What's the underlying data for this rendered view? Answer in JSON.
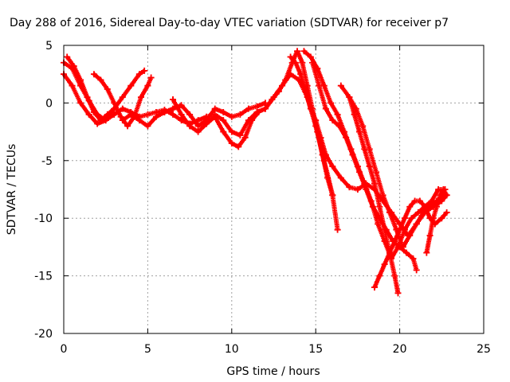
{
  "chart_data": {
    "type": "scatter",
    "title": "Day 288 of 2016, Sidereal Day-to-day VTEC variation (SDTVAR) for receiver p7",
    "xlabel": "GPS time / hours",
    "ylabel": "SDTVAR / TECUs",
    "xlim": [
      0,
      25
    ],
    "ylim": [
      -20,
      5
    ],
    "xticks": [
      "0",
      "5",
      "10",
      "15",
      "20",
      "25"
    ],
    "yticks": [
      "5",
      "0",
      "-5",
      "-10",
      "-15",
      "-20"
    ],
    "grid": true,
    "marker": "+",
    "series_color": "#ff0000",
    "series": [
      {
        "points": [
          [
            0,
            2.5
          ],
          [
            0.5,
            1.5
          ],
          [
            1,
            0
          ],
          [
            1.5,
            -1
          ],
          [
            2,
            -1.8
          ],
          [
            2.5,
            -1.5
          ],
          [
            3,
            -1
          ],
          [
            3.5,
            -0.5
          ],
          [
            4,
            -0.8
          ],
          [
            4.5,
            -1.2
          ],
          [
            5,
            -1
          ],
          [
            5.5,
            -0.8
          ],
          [
            6,
            -0.6
          ],
          [
            6.5,
            -1
          ],
          [
            7,
            -1.5
          ],
          [
            7.5,
            -1.8
          ],
          [
            8,
            -1.5
          ],
          [
            8.5,
            -1.2
          ],
          [
            9,
            -1
          ],
          [
            9.5,
            -1.5
          ],
          [
            10,
            -2.5
          ],
          [
            10.5,
            -2.8
          ],
          [
            11,
            -1.5
          ],
          [
            11.5,
            -0.8
          ],
          [
            12,
            -0.5
          ],
          [
            12.5,
            0.5
          ],
          [
            13,
            1.5
          ],
          [
            13.5,
            2.5
          ],
          [
            14,
            2
          ],
          [
            14.5,
            0.5
          ],
          [
            15,
            -2
          ],
          [
            15.5,
            -5
          ],
          [
            16,
            -8
          ],
          [
            16.3,
            -11
          ]
        ]
      },
      {
        "points": [
          [
            0,
            3.5
          ],
          [
            0.5,
            3
          ],
          [
            1,
            1.5
          ],
          [
            1.5,
            0.2
          ],
          [
            2,
            -1
          ],
          [
            2.5,
            -1.5
          ],
          [
            3,
            -0.5
          ],
          [
            3.5,
            0.5
          ],
          [
            4,
            1.5
          ],
          [
            4.5,
            2.5
          ],
          [
            4.8,
            2.8
          ]
        ]
      },
      {
        "points": [
          [
            1.8,
            2.5
          ],
          [
            2.2,
            2
          ],
          [
            2.6,
            1.2
          ],
          [
            3,
            0
          ],
          [
            3.4,
            -1.2
          ],
          [
            3.8,
            -2
          ],
          [
            4.2,
            -1.2
          ],
          [
            4.6,
            0.5
          ],
          [
            5,
            1.5
          ],
          [
            5.2,
            2.2
          ]
        ]
      },
      {
        "points": [
          [
            0.2,
            4
          ],
          [
            0.6,
            3.2
          ],
          [
            1,
            2
          ],
          [
            1.4,
            0.5
          ],
          [
            1.8,
            -0.8
          ],
          [
            2.2,
            -1.5
          ],
          [
            2.6,
            -1
          ],
          [
            3,
            -0.5
          ]
        ]
      },
      {
        "points": [
          [
            3.5,
            -1.5
          ],
          [
            4,
            -1
          ],
          [
            4.5,
            -1.5
          ],
          [
            5,
            -2
          ],
          [
            5.5,
            -1.2
          ],
          [
            6,
            -0.8
          ],
          [
            6.5,
            -0.5
          ],
          [
            7,
            -0.2
          ],
          [
            7.5,
            -1
          ],
          [
            8,
            -2
          ],
          [
            8.5,
            -1.5
          ],
          [
            9,
            -0.5
          ],
          [
            9.5,
            -0.8
          ],
          [
            10,
            -1.2
          ],
          [
            10.5,
            -1
          ],
          [
            11,
            -0.5
          ],
          [
            11.5,
            -0.3
          ],
          [
            12,
            0
          ]
        ]
      },
      {
        "points": [
          [
            6.5,
            0.3
          ],
          [
            7,
            -1
          ],
          [
            7.5,
            -2
          ],
          [
            8,
            -2.5
          ],
          [
            8.5,
            -1.8
          ],
          [
            9,
            -1.2
          ],
          [
            9.5,
            -2.5
          ],
          [
            10,
            -3.5
          ],
          [
            10.4,
            -3.8
          ],
          [
            10.8,
            -3
          ],
          [
            11.2,
            -1.5
          ],
          [
            11.6,
            -0.8
          ]
        ]
      },
      {
        "points": [
          [
            12,
            -0.5
          ],
          [
            12.4,
            0.3
          ],
          [
            12.8,
            1
          ],
          [
            13.2,
            2
          ],
          [
            13.6,
            3.5
          ],
          [
            13.9,
            4.5
          ],
          [
            14.2,
            3.5
          ],
          [
            14.5,
            1.5
          ],
          [
            14.8,
            -0.5
          ],
          [
            15.1,
            -2.5
          ],
          [
            15.4,
            -4.5
          ],
          [
            15.7,
            -6.5
          ],
          [
            16,
            -8
          ]
        ]
      },
      {
        "points": [
          [
            13.5,
            4
          ],
          [
            13.8,
            3.5
          ],
          [
            14.1,
            2.5
          ],
          [
            14.4,
            1
          ],
          [
            14.7,
            -0.5
          ],
          [
            15,
            -1.5
          ],
          [
            15.3,
            -3
          ],
          [
            15.6,
            -4.5
          ],
          [
            16,
            -5.5
          ],
          [
            16.5,
            -6.5
          ],
          [
            17,
            -7.3
          ],
          [
            17.5,
            -7.5
          ],
          [
            18,
            -7
          ],
          [
            18.5,
            -7.5
          ],
          [
            19,
            -8.5
          ],
          [
            19.5,
            -9.5
          ],
          [
            20,
            -10.5
          ],
          [
            20.5,
            -11.5
          ],
          [
            21,
            -10.5
          ],
          [
            21.5,
            -9.5
          ],
          [
            22,
            -9
          ],
          [
            22.5,
            -8.5
          ],
          [
            22.8,
            -8
          ]
        ]
      },
      {
        "points": [
          [
            14.3,
            4.5
          ],
          [
            14.7,
            4
          ],
          [
            15.1,
            3
          ],
          [
            15.5,
            1.5
          ],
          [
            15.9,
            0
          ],
          [
            16.3,
            -1
          ],
          [
            16.7,
            -2.5
          ],
          [
            17.1,
            -4
          ],
          [
            17.5,
            -5.5
          ],
          [
            17.9,
            -7
          ],
          [
            18.3,
            -8.5
          ],
          [
            18.7,
            -10.5
          ],
          [
            19.1,
            -12
          ],
          [
            19.5,
            -13.5
          ],
          [
            19.9,
            -12.5
          ],
          [
            20.3,
            -11
          ],
          [
            20.7,
            -10
          ],
          [
            21.1,
            -9.5
          ],
          [
            21.5,
            -9
          ],
          [
            21.9,
            -8.5
          ],
          [
            22.3,
            -7.5
          ],
          [
            22.7,
            -7.5
          ]
        ]
      },
      {
        "points": [
          [
            14.8,
            3.5
          ],
          [
            15.2,
            1.5
          ],
          [
            15.6,
            -0.5
          ],
          [
            16,
            -1.5
          ],
          [
            16.4,
            -2
          ],
          [
            16.8,
            -3
          ],
          [
            17.2,
            -4.5
          ],
          [
            17.6,
            -6
          ],
          [
            18,
            -7.5
          ],
          [
            18.4,
            -9
          ],
          [
            18.8,
            -10
          ],
          [
            19.2,
            -11
          ],
          [
            19.6,
            -12
          ],
          [
            20,
            -12.5
          ],
          [
            20.4,
            -13
          ],
          [
            20.8,
            -13.5
          ],
          [
            21,
            -14.5
          ]
        ]
      },
      {
        "points": [
          [
            16.5,
            1.5
          ],
          [
            17,
            0.5
          ],
          [
            17.4,
            -0.5
          ],
          [
            17.8,
            -2
          ],
          [
            18.2,
            -4
          ],
          [
            18.6,
            -6
          ],
          [
            19,
            -8
          ],
          [
            19.4,
            -9.5
          ],
          [
            19.8,
            -11
          ],
          [
            20.2,
            -12.5
          ],
          [
            20.6,
            -11.5
          ],
          [
            21,
            -10.5
          ],
          [
            21.4,
            -9.5
          ],
          [
            21.8,
            -9
          ],
          [
            22.2,
            -8.5
          ],
          [
            22.6,
            -8
          ]
        ]
      },
      {
        "points": [
          [
            17,
            0.5
          ],
          [
            17.3,
            -1
          ],
          [
            17.6,
            -2.5
          ],
          [
            17.9,
            -4
          ],
          [
            18.2,
            -5.5
          ],
          [
            18.5,
            -7
          ],
          [
            18.8,
            -9
          ],
          [
            19.1,
            -11
          ],
          [
            19.4,
            -13
          ],
          [
            19.7,
            -15
          ],
          [
            19.9,
            -16.5
          ]
        ]
      },
      {
        "points": [
          [
            18.5,
            -16
          ],
          [
            18.8,
            -15
          ],
          [
            19.1,
            -14
          ],
          [
            19.4,
            -13
          ],
          [
            19.7,
            -12
          ],
          [
            20,
            -11
          ],
          [
            20.3,
            -10
          ],
          [
            20.6,
            -9
          ],
          [
            20.9,
            -8.5
          ],
          [
            21.2,
            -8.5
          ],
          [
            21.5,
            -9
          ],
          [
            21.8,
            -10
          ],
          [
            22.1,
            -10.5
          ],
          [
            22.5,
            -10
          ],
          [
            22.8,
            -9.5
          ]
        ]
      },
      {
        "points": [
          [
            21.6,
            -13
          ],
          [
            21.8,
            -11.5
          ],
          [
            22,
            -10
          ],
          [
            22.2,
            -9
          ],
          [
            22.4,
            -8
          ],
          [
            22.6,
            -7.5
          ],
          [
            22.8,
            -8
          ]
        ]
      }
    ]
  }
}
